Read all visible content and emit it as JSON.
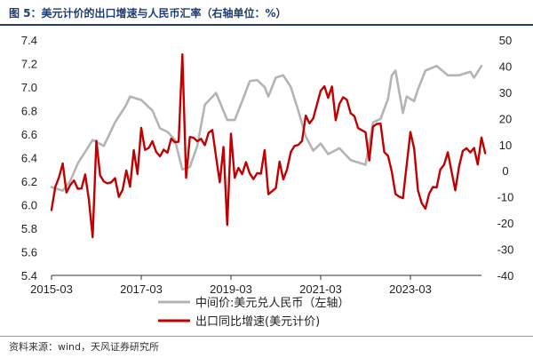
{
  "figure_title": "图 5：美元计价的出口增速与人民币汇率（右轴单位：%）",
  "source": "资料来源：wind，天风证券研究所",
  "chart_data": {
    "type": "line",
    "title": "",
    "x_ticks": [
      "2015-03",
      "2017-03",
      "2019-03",
      "2021-03",
      "2023-03"
    ],
    "x_range": [
      "2015-03",
      "2024-10"
    ],
    "y_left": {
      "range": [
        5.4,
        7.4
      ],
      "ticks": [
        "5.4",
        "5.6",
        "5.8",
        "6.0",
        "6.2",
        "6.4",
        "6.6",
        "6.8",
        "7.0",
        "7.2",
        "7.4"
      ]
    },
    "y_right": {
      "range": [
        -40,
        50
      ],
      "ticks": [
        "-40",
        "-30",
        "-20",
        "-10",
        "0",
        "10",
        "20",
        "30",
        "40",
        "50"
      ]
    },
    "grid": false,
    "legend_position": "bottom-center",
    "series": [
      {
        "name": "中间价:美元兑人民币（左轴）",
        "axis": "left",
        "color": "#b4b4b4",
        "points": [
          [
            "2015-03",
            6.15
          ],
          [
            "2015-06",
            6.12
          ],
          [
            "2015-08",
            6.2
          ],
          [
            "2015-10",
            6.35
          ],
          [
            "2015-12",
            6.45
          ],
          [
            "2016-02",
            6.55
          ],
          [
            "2016-05",
            6.5
          ],
          [
            "2016-08",
            6.7
          ],
          [
            "2016-11",
            6.85
          ],
          [
            "2016-12",
            6.92
          ],
          [
            "2017-03",
            6.89
          ],
          [
            "2017-06",
            6.8
          ],
          [
            "2017-08",
            6.65
          ],
          [
            "2017-10",
            6.62
          ],
          [
            "2017-12",
            6.55
          ],
          [
            "2018-02",
            6.3
          ],
          [
            "2018-04",
            6.32
          ],
          [
            "2018-06",
            6.5
          ],
          [
            "2018-08",
            6.85
          ],
          [
            "2018-11",
            6.95
          ],
          [
            "2019-02",
            6.72
          ],
          [
            "2019-04",
            6.72
          ],
          [
            "2019-06",
            6.88
          ],
          [
            "2019-08",
            7.05
          ],
          [
            "2019-10",
            7.06
          ],
          [
            "2019-12",
            7.0
          ],
          [
            "2020-01",
            6.92
          ],
          [
            "2020-03",
            7.08
          ],
          [
            "2020-05",
            7.1
          ],
          [
            "2020-07",
            7.0
          ],
          [
            "2020-09",
            6.8
          ],
          [
            "2020-11",
            6.58
          ],
          [
            "2021-01",
            6.46
          ],
          [
            "2021-03",
            6.52
          ],
          [
            "2021-05",
            6.43
          ],
          [
            "2021-08",
            6.48
          ],
          [
            "2021-11",
            6.38
          ],
          [
            "2022-02",
            6.35
          ],
          [
            "2022-03",
            6.34
          ],
          [
            "2022-05",
            6.7
          ],
          [
            "2022-07",
            6.73
          ],
          [
            "2022-09",
            6.9
          ],
          [
            "2022-10",
            7.1
          ],
          [
            "2022-11",
            7.14
          ],
          [
            "2023-01",
            6.78
          ],
          [
            "2023-02",
            6.92
          ],
          [
            "2023-04",
            6.88
          ],
          [
            "2023-05",
            6.98
          ],
          [
            "2023-07",
            7.14
          ],
          [
            "2023-10",
            7.18
          ],
          [
            "2024-01",
            7.1
          ],
          [
            "2024-04",
            7.1
          ],
          [
            "2024-07",
            7.13
          ],
          [
            "2024-08",
            7.08
          ],
          [
            "2024-10",
            7.18
          ]
        ]
      },
      {
        "name": "出口同比增速(美元计价)",
        "axis": "right",
        "color": "#c00000",
        "points": [
          [
            "2015-03",
            -15.0
          ],
          [
            "2015-04",
            -6.2
          ],
          [
            "2015-05",
            -2.5
          ],
          [
            "2015-06",
            2.8
          ],
          [
            "2015-07",
            -8.3
          ],
          [
            "2015-08",
            -5.5
          ],
          [
            "2015-09",
            -3.7
          ],
          [
            "2015-10",
            -6.9
          ],
          [
            "2015-11",
            -6.8
          ],
          [
            "2015-12",
            -1.4
          ],
          [
            "2016-01",
            -11.2
          ],
          [
            "2016-02",
            -25.4
          ],
          [
            "2016-03",
            11.5
          ],
          [
            "2016-04",
            -1.8
          ],
          [
            "2016-05",
            -4.1
          ],
          [
            "2016-06",
            -4.8
          ],
          [
            "2016-07",
            -4.4
          ],
          [
            "2016-08",
            -2.8
          ],
          [
            "2016-09",
            -10.0
          ],
          [
            "2016-10",
            -7.3
          ],
          [
            "2016-11",
            0.1
          ],
          [
            "2016-12",
            -6.1
          ],
          [
            "2017-01",
            7.9
          ],
          [
            "2017-02",
            -1.3
          ],
          [
            "2017-03",
            16.4
          ],
          [
            "2017-04",
            8.0
          ],
          [
            "2017-05",
            8.7
          ],
          [
            "2017-06",
            11.3
          ],
          [
            "2017-07",
            7.2
          ],
          [
            "2017-08",
            5.5
          ],
          [
            "2017-09",
            8.1
          ],
          [
            "2017-10",
            6.9
          ],
          [
            "2017-11",
            12.3
          ],
          [
            "2017-12",
            10.9
          ],
          [
            "2018-01",
            11.1
          ],
          [
            "2018-02",
            44.5
          ],
          [
            "2018-03",
            -2.7
          ],
          [
            "2018-04",
            12.9
          ],
          [
            "2018-05",
            12.6
          ],
          [
            "2018-06",
            11.3
          ],
          [
            "2018-07",
            12.2
          ],
          [
            "2018-08",
            9.8
          ],
          [
            "2018-09",
            14.5
          ],
          [
            "2018-10",
            15.6
          ],
          [
            "2018-11",
            5.4
          ],
          [
            "2018-12",
            -4.4
          ],
          [
            "2019-01",
            9.1
          ],
          [
            "2019-02",
            -20.7
          ],
          [
            "2019-03",
            14.2
          ],
          [
            "2019-04",
            -2.7
          ],
          [
            "2019-05",
            1.1
          ],
          [
            "2019-06",
            -1.3
          ],
          [
            "2019-07",
            3.3
          ],
          [
            "2019-08",
            -1.0
          ],
          [
            "2019-09",
            -3.2
          ],
          [
            "2019-10",
            -0.9
          ],
          [
            "2019-11",
            -1.1
          ],
          [
            "2019-12",
            7.9
          ],
          [
            "2020-01",
            -9.0
          ],
          [
            "2020-03",
            -6.6
          ],
          [
            "2020-04",
            3.5
          ],
          [
            "2020-05",
            -3.3
          ],
          [
            "2020-06",
            0.5
          ],
          [
            "2020-07",
            7.2
          ],
          [
            "2020-08",
            9.5
          ],
          [
            "2020-09",
            9.9
          ],
          [
            "2020-10",
            11.4
          ],
          [
            "2020-11",
            21.1
          ],
          [
            "2020-12",
            18.1
          ],
          [
            "2021-01",
            20.0
          ],
          [
            "2021-03",
            30.6
          ],
          [
            "2021-04",
            32.3
          ],
          [
            "2021-05",
            27.9
          ],
          [
            "2021-06",
            32.2
          ],
          [
            "2021-07",
            19.3
          ],
          [
            "2021-08",
            25.6
          ],
          [
            "2021-09",
            28.1
          ],
          [
            "2021-10",
            27.1
          ],
          [
            "2021-11",
            22.0
          ],
          [
            "2021-12",
            20.9
          ],
          [
            "2022-01",
            16.3
          ],
          [
            "2022-03",
            14.7
          ],
          [
            "2022-04",
            3.9
          ],
          [
            "2022-05",
            16.9
          ],
          [
            "2022-06",
            17.9
          ],
          [
            "2022-07",
            18.0
          ],
          [
            "2022-08",
            7.1
          ],
          [
            "2022-09",
            5.7
          ],
          [
            "2022-10",
            -0.3
          ],
          [
            "2022-11",
            -8.9
          ],
          [
            "2022-12",
            -9.9
          ],
          [
            "2023-01",
            -10.5
          ],
          [
            "2023-03",
            14.8
          ],
          [
            "2023-04",
            8.5
          ],
          [
            "2023-05",
            -7.5
          ],
          [
            "2023-06",
            -12.4
          ],
          [
            "2023-07",
            -14.5
          ],
          [
            "2023-08",
            -8.8
          ],
          [
            "2023-09",
            -6.2
          ],
          [
            "2023-10",
            -6.4
          ],
          [
            "2023-11",
            0.5
          ],
          [
            "2023-12",
            2.3
          ],
          [
            "2024-01",
            7.1
          ],
          [
            "2024-03",
            -7.5
          ],
          [
            "2024-04",
            1.5
          ],
          [
            "2024-05",
            7.6
          ],
          [
            "2024-06",
            8.6
          ],
          [
            "2024-07",
            7.0
          ],
          [
            "2024-08",
            8.7
          ],
          [
            "2024-09",
            2.4
          ],
          [
            "2024-10",
            12.7
          ],
          [
            "2024-11",
            6.7
          ]
        ]
      }
    ]
  }
}
